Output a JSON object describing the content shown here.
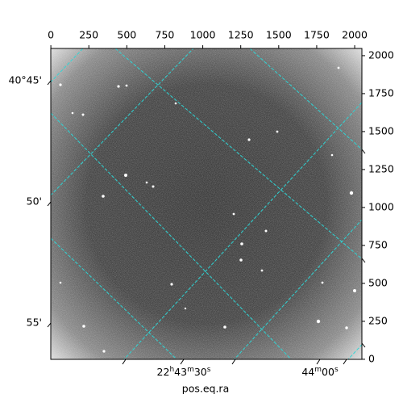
{
  "chart_data": {
    "type": "image",
    "xlabel": "pos.eq.ra",
    "xlim": [
      -0.5,
      2047.5
    ],
    "ylim": [
      -0.5,
      2047.5
    ],
    "xticks": [
      0,
      250,
      500,
      750,
      1000,
      1250,
      1500,
      1750,
      2000
    ],
    "yticks": [
      0,
      250,
      500,
      750,
      1000,
      1250,
      1500,
      1750,
      2000
    ],
    "ra_ticks": [
      "22h43m30s",
      "44m00s"
    ],
    "dec_ticks": [
      "40°45'",
      "50'",
      "55'"
    ]
  }
}
